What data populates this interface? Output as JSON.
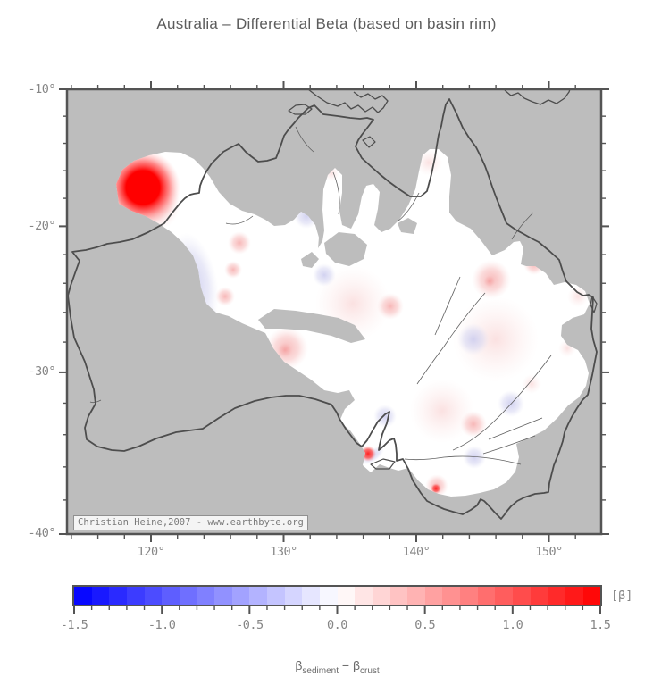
{
  "title": "Australia – Differential Beta (based on basin rim)",
  "map": {
    "attribution": "Christian Heine,2007 - www.earthbyte.org",
    "lat_tick_labels": [
      "-10°",
      "-20°",
      "-30°",
      "-40°"
    ],
    "lon_tick_labels": [
      "120°",
      "130°",
      "140°",
      "150°"
    ],
    "lat_tick_values": [
      -10,
      -20,
      -30,
      -40
    ],
    "lon_tick_values": [
      120,
      130,
      140,
      150
    ],
    "minor_tick_interval_deg": 2
  },
  "colorbar": {
    "unit_label": "[β]",
    "tick_labels": [
      "-1.5",
      "-1.0",
      "-0.5",
      "0.0",
      "0.5",
      "1.0",
      "1.5"
    ],
    "tick_values": [
      -1.5,
      -1.0,
      -0.5,
      0.0,
      0.5,
      1.0,
      1.5
    ],
    "range_min": -1.5,
    "range_max": 1.5,
    "segment_step": 0.1,
    "colormap": "blue-white-red"
  },
  "caption": {
    "beta1": "β",
    "sub1": "sediment",
    "operator": " − ",
    "beta2": "β",
    "sub2": "crust"
  },
  "colors": {
    "map_gray": "#bdbdbd",
    "coastline": "#4d4d4d",
    "frame": "#545454",
    "label_text": "#868686",
    "title_text": "#5c5c5c",
    "scale_min_color": "#0000ff",
    "scale_zero_color": "#ffffff",
    "scale_max_color": "#ff0000"
  }
}
